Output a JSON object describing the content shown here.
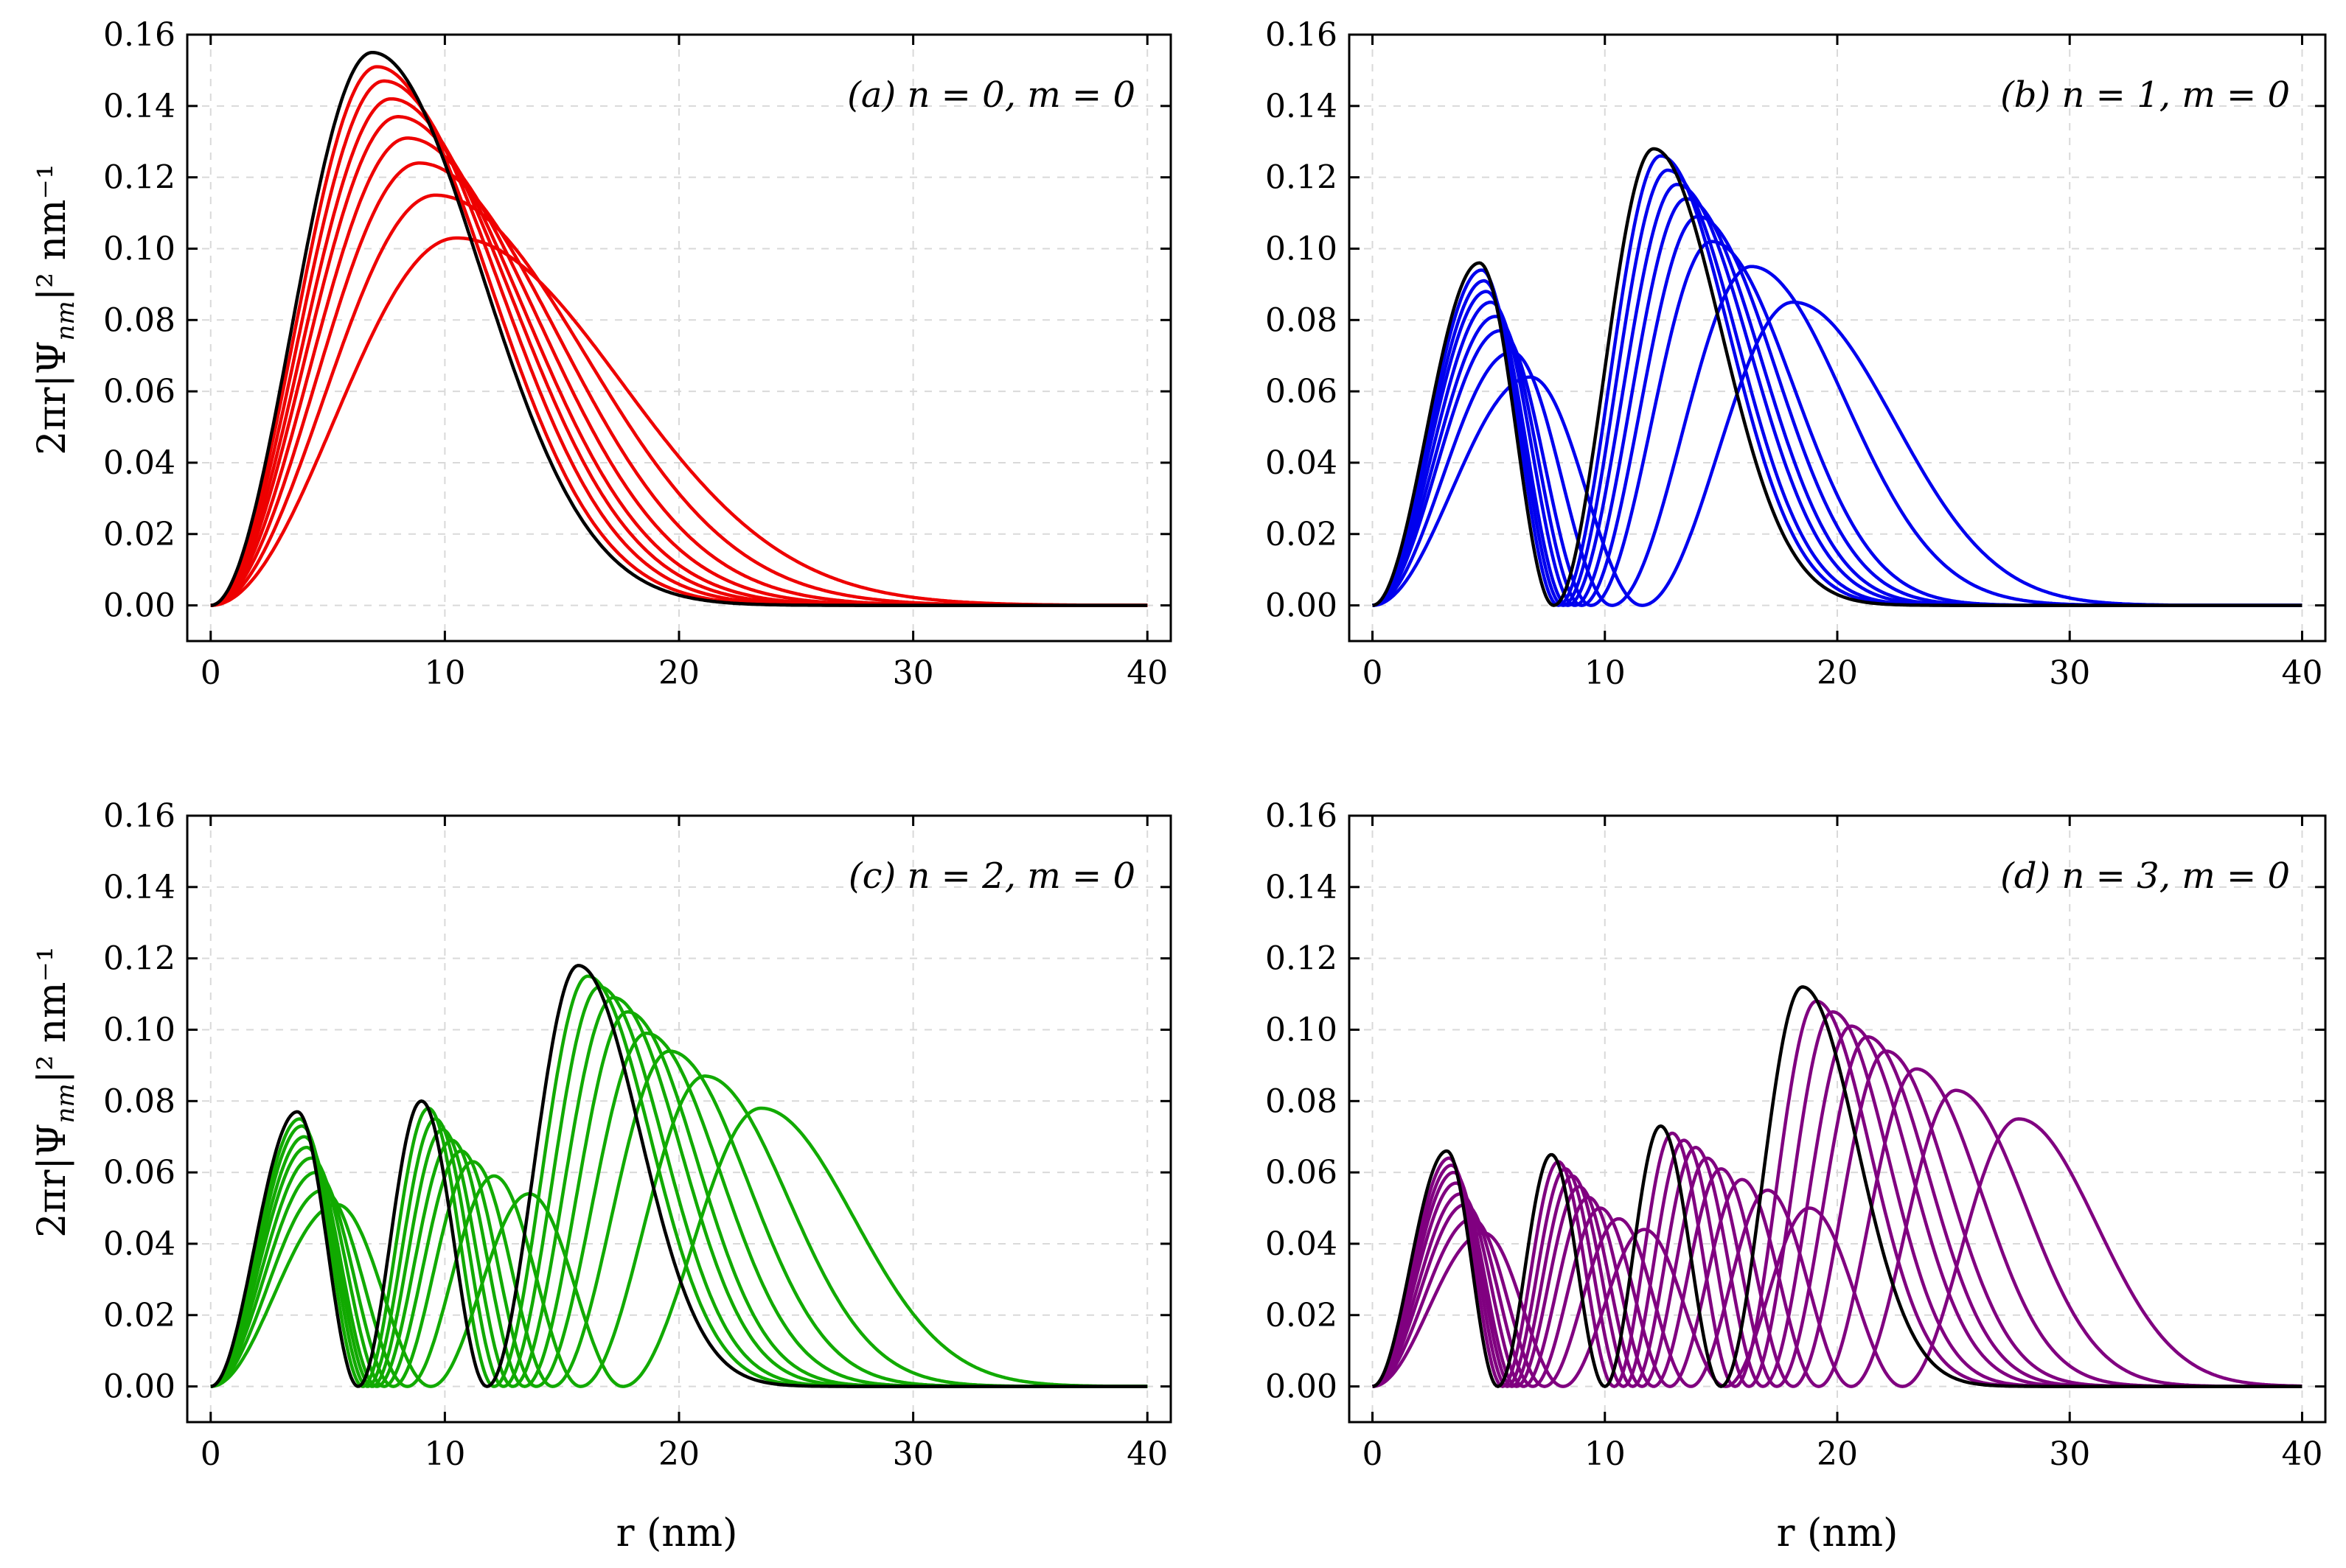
{
  "figure": {
    "ylabel": "2πr|Ψ",
    "ylabel_sub": "nm",
    "ylabel_tail": "|² nm⁻¹",
    "xlabel": "r (nm)"
  },
  "chart_data": [
    {
      "type": "line",
      "annotation": "(a) n = 0,  m = 0",
      "n": 0,
      "color": "#ee0000",
      "highlight_color": "#000000",
      "xlim": [
        -1,
        41
      ],
      "ylim": [
        -0.01,
        0.16
      ],
      "xticks": [
        "0",
        "10",
        "20",
        "30",
        "40"
      ],
      "yticks": [
        "0.00",
        "0.02",
        "0.04",
        "0.06",
        "0.08",
        "0.10",
        "0.12",
        "0.14",
        "0.16"
      ],
      "series": [
        {
          "name": "black",
          "peaks": [
            [
              6.9,
              0.155
            ]
          ],
          "zeros": [],
          "end": 40
        },
        {
          "name": "s1",
          "peaks": [
            [
              7.1,
              0.151
            ]
          ],
          "zeros": [],
          "end": 40
        },
        {
          "name": "s2",
          "peaks": [
            [
              7.4,
              0.147
            ]
          ],
          "zeros": [],
          "end": 40
        },
        {
          "name": "s3",
          "peaks": [
            [
              7.7,
              0.142
            ]
          ],
          "zeros": [],
          "end": 40
        },
        {
          "name": "s4",
          "peaks": [
            [
              8.0,
              0.137
            ]
          ],
          "zeros": [],
          "end": 40
        },
        {
          "name": "s5",
          "peaks": [
            [
              8.4,
              0.131
            ]
          ],
          "zeros": [],
          "end": 40
        },
        {
          "name": "s6",
          "peaks": [
            [
              8.9,
              0.124
            ]
          ],
          "zeros": [],
          "end": 40
        },
        {
          "name": "s7",
          "peaks": [
            [
              9.6,
              0.115
            ]
          ],
          "zeros": [],
          "end": 40
        },
        {
          "name": "s8",
          "peaks": [
            [
              10.5,
              0.103
            ]
          ],
          "zeros": [],
          "end": 40
        }
      ]
    },
    {
      "type": "line",
      "annotation": "(b) n = 1,  m = 0",
      "n": 1,
      "color": "#0000ee",
      "highlight_color": "#000000",
      "xlim": [
        -1,
        41
      ],
      "ylim": [
        -0.01,
        0.16
      ],
      "xticks": [
        "0",
        "10",
        "20",
        "30",
        "40"
      ],
      "yticks": [
        "0.00",
        "0.02",
        "0.04",
        "0.06",
        "0.08",
        "0.10",
        "0.12",
        "0.14",
        "0.16"
      ],
      "series": [
        {
          "name": "black",
          "peaks": [
            [
              4.6,
              0.096
            ],
            [
              12.1,
              0.128
            ]
          ],
          "zeros": [
            7.8
          ],
          "end": 40
        },
        {
          "name": "s1",
          "peaks": [
            [
              4.7,
              0.094
            ],
            [
              12.4,
              0.126
            ]
          ],
          "zeros": [
            8.0
          ],
          "end": 40
        },
        {
          "name": "s2",
          "peaks": [
            [
              4.8,
              0.091
            ],
            [
              12.7,
              0.122
            ]
          ],
          "zeros": [
            8.2
          ],
          "end": 40
        },
        {
          "name": "s3",
          "peaks": [
            [
              4.9,
              0.088
            ],
            [
              13.1,
              0.118
            ]
          ],
          "zeros": [
            8.4
          ],
          "end": 40
        },
        {
          "name": "s4",
          "peaks": [
            [
              5.1,
              0.085
            ],
            [
              13.5,
              0.114
            ]
          ],
          "zeros": [
            8.7
          ],
          "end": 40
        },
        {
          "name": "s5",
          "peaks": [
            [
              5.3,
              0.081
            ],
            [
              14.0,
              0.109
            ]
          ],
          "zeros": [
            9.0
          ],
          "end": 40
        },
        {
          "name": "s6",
          "peaks": [
            [
              5.5,
              0.077
            ],
            [
              14.6,
              0.102
            ]
          ],
          "zeros": [
            9.4
          ],
          "end": 40
        },
        {
          "name": "s7",
          "peaks": [
            [
              6.0,
              0.071
            ],
            [
              16.3,
              0.095
            ]
          ],
          "zeros": [
            10.3
          ],
          "end": 40
        },
        {
          "name": "s8",
          "peaks": [
            [
              6.8,
              0.064
            ],
            [
              18.1,
              0.085
            ]
          ],
          "zeros": [
            11.6
          ],
          "end": 40
        }
      ]
    },
    {
      "type": "line",
      "annotation": "(c) n = 2,  m = 0",
      "n": 2,
      "color": "#11aa00",
      "highlight_color": "#000000",
      "xlim": [
        -1,
        41
      ],
      "ylim": [
        -0.01,
        0.16
      ],
      "xticks": [
        "0",
        "10",
        "20",
        "30",
        "40"
      ],
      "yticks": [
        "0.00",
        "0.02",
        "0.04",
        "0.06",
        "0.08",
        "0.10",
        "0.12",
        "0.14",
        "0.16"
      ],
      "series": [
        {
          "name": "black",
          "peaks": [
            [
              3.7,
              0.077
            ],
            [
              9.0,
              0.08
            ],
            [
              15.7,
              0.118
            ]
          ],
          "zeros": [
            6.3,
            11.8
          ],
          "end": 40
        },
        {
          "name": "s1",
          "peaks": [
            [
              3.8,
              0.075
            ],
            [
              9.3,
              0.078
            ],
            [
              16.1,
              0.115
            ]
          ],
          "zeros": [
            6.5,
            12.1
          ],
          "end": 40
        },
        {
          "name": "s2",
          "peaks": [
            [
              3.9,
              0.073
            ],
            [
              9.6,
              0.075
            ],
            [
              16.6,
              0.112
            ]
          ],
          "zeros": [
            6.7,
            12.5
          ],
          "end": 40
        },
        {
          "name": "s3",
          "peaks": [
            [
              4.0,
              0.07
            ],
            [
              9.9,
              0.072
            ],
            [
              17.2,
              0.109
            ]
          ],
          "zeros": [
            6.9,
            12.9
          ],
          "end": 40
        },
        {
          "name": "s4",
          "peaks": [
            [
              4.1,
              0.067
            ],
            [
              10.3,
              0.069
            ],
            [
              17.8,
              0.105
            ]
          ],
          "zeros": [
            7.1,
            13.4
          ],
          "end": 40
        },
        {
          "name": "s5",
          "peaks": [
            [
              4.3,
              0.064
            ],
            [
              10.7,
              0.066
            ],
            [
              18.6,
              0.099
            ]
          ],
          "zeros": [
            7.4,
            13.9
          ],
          "end": 40
        },
        {
          "name": "s6",
          "peaks": [
            [
              4.5,
              0.06
            ],
            [
              11.2,
              0.063
            ],
            [
              19.6,
              0.094
            ]
          ],
          "zeros": [
            7.8,
            14.6
          ],
          "end": 40
        },
        {
          "name": "s7",
          "peaks": [
            [
              4.8,
              0.055
            ],
            [
              12.1,
              0.059
            ],
            [
              21.1,
              0.087
            ]
          ],
          "zeros": [
            8.4,
            15.8
          ],
          "end": 40
        },
        {
          "name": "s8",
          "peaks": [
            [
              5.4,
              0.051
            ],
            [
              13.6,
              0.054
            ],
            [
              23.5,
              0.078
            ]
          ],
          "zeros": [
            9.4,
            17.6
          ],
          "end": 40
        }
      ]
    },
    {
      "type": "line",
      "annotation": "(d) n = 3,  m = 0",
      "n": 3,
      "color": "#800080",
      "highlight_color": "#000000",
      "xlim": [
        -1,
        41
      ],
      "ylim": [
        -0.01,
        0.16
      ],
      "xticks": [
        "0",
        "10",
        "20",
        "30",
        "40"
      ],
      "yticks": [
        "0.00",
        "0.02",
        "0.04",
        "0.06",
        "0.08",
        "0.10",
        "0.12",
        "0.14",
        "0.16"
      ],
      "series": [
        {
          "name": "black",
          "peaks": [
            [
              3.2,
              0.066
            ],
            [
              7.7,
              0.065
            ],
            [
              12.4,
              0.073
            ],
            [
              18.5,
              0.112
            ]
          ],
          "zeros": [
            5.4,
            10.0,
            15.0
          ],
          "end": 40
        },
        {
          "name": "s1",
          "peaks": [
            [
              3.3,
              0.064
            ],
            [
              8.0,
              0.063
            ],
            [
              12.9,
              0.071
            ],
            [
              19.1,
              0.108
            ]
          ],
          "zeros": [
            5.6,
            10.4,
            15.6
          ],
          "end": 40
        },
        {
          "name": "s2",
          "peaks": [
            [
              3.4,
              0.062
            ],
            [
              8.3,
              0.061
            ],
            [
              13.4,
              0.069
            ],
            [
              19.8,
              0.105
            ]
          ],
          "zeros": [
            5.8,
            10.8,
            16.2
          ],
          "end": 40
        },
        {
          "name": "s3",
          "peaks": [
            [
              3.5,
              0.06
            ],
            [
              8.6,
              0.059
            ],
            [
              13.9,
              0.067
            ],
            [
              20.6,
              0.101
            ]
          ],
          "zeros": [
            6.0,
            11.2,
            16.8
          ],
          "end": 40
        },
        {
          "name": "s4",
          "peaks": [
            [
              3.6,
              0.057
            ],
            [
              8.9,
              0.056
            ],
            [
              14.4,
              0.064
            ],
            [
              21.3,
              0.098
            ]
          ],
          "zeros": [
            6.2,
            11.6,
            17.4
          ],
          "end": 40
        },
        {
          "name": "s5",
          "peaks": [
            [
              3.8,
              0.054
            ],
            [
              9.3,
              0.053
            ],
            [
              15.0,
              0.061
            ],
            [
              22.1,
              0.094
            ]
          ],
          "zeros": [
            6.5,
            12.1,
            18.1
          ],
          "end": 40
        },
        {
          "name": "s6",
          "peaks": [
            [
              4.0,
              0.051
            ],
            [
              9.8,
              0.05
            ],
            [
              15.9,
              0.058
            ],
            [
              23.4,
              0.089
            ]
          ],
          "zeros": [
            6.9,
            12.8,
            19.2
          ],
          "end": 40
        },
        {
          "name": "s7",
          "peaks": [
            [
              4.3,
              0.047
            ],
            [
              10.6,
              0.047
            ],
            [
              17.0,
              0.055
            ],
            [
              25.1,
              0.083
            ]
          ],
          "zeros": [
            7.4,
            13.7,
            20.6
          ],
          "end": 40
        },
        {
          "name": "s8",
          "peaks": [
            [
              4.8,
              0.043
            ],
            [
              11.7,
              0.044
            ],
            [
              18.8,
              0.05
            ],
            [
              27.8,
              0.075
            ]
          ],
          "zeros": [
            8.2,
            15.2,
            22.8
          ],
          "end": 40
        }
      ]
    }
  ]
}
